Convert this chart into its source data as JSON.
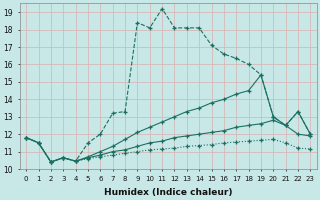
{
  "xlabel": "Humidex (Indice chaleur)",
  "xlim": [
    -0.5,
    23.5
  ],
  "ylim": [
    10,
    19.5
  ],
  "yticks": [
    10,
    11,
    12,
    13,
    14,
    15,
    16,
    17,
    18,
    19
  ],
  "xticks": [
    0,
    1,
    2,
    3,
    4,
    5,
    6,
    7,
    8,
    9,
    10,
    11,
    12,
    13,
    14,
    15,
    16,
    17,
    18,
    19,
    20,
    21,
    22,
    23
  ],
  "bg_color": "#c8e8e8",
  "line_color": "#1a7060",
  "grid_color": "#b0d0d0",
  "series": [
    {
      "x": [
        0,
        1,
        2,
        3,
        4,
        5,
        6,
        7,
        8,
        9,
        10,
        11,
        12,
        13,
        14,
        15,
        16,
        17,
        18,
        19,
        20,
        21,
        22,
        23
      ],
      "y": [
        11.8,
        11.5,
        10.4,
        10.65,
        10.45,
        11.5,
        12.0,
        13.2,
        13.3,
        18.4,
        18.1,
        19.2,
        18.1,
        18.1,
        18.1,
        17.1,
        16.6,
        16.35,
        16.0,
        15.4,
        13.0,
        12.5,
        13.3,
        12.0
      ],
      "linestyle": "--",
      "marker": "+"
    },
    {
      "x": [
        0,
        1,
        2,
        3,
        4,
        5,
        6,
        7,
        8,
        9,
        10,
        11,
        12,
        13,
        14,
        15,
        16,
        17,
        18,
        19,
        20,
        21,
        22,
        23
      ],
      "y": [
        11.8,
        11.5,
        10.4,
        10.65,
        10.45,
        10.7,
        11.0,
        11.3,
        11.7,
        12.1,
        12.4,
        12.7,
        13.0,
        13.3,
        13.5,
        13.8,
        14.0,
        14.3,
        14.5,
        15.4,
        13.0,
        12.5,
        13.3,
        12.0
      ],
      "linestyle": "-",
      "marker": "+"
    },
    {
      "x": [
        0,
        1,
        2,
        3,
        4,
        5,
        6,
        7,
        8,
        9,
        10,
        11,
        12,
        13,
        14,
        15,
        16,
        17,
        18,
        19,
        20,
        21,
        22,
        23
      ],
      "y": [
        11.8,
        11.5,
        10.4,
        10.65,
        10.45,
        10.65,
        10.8,
        11.0,
        11.1,
        11.3,
        11.5,
        11.6,
        11.8,
        11.9,
        12.0,
        12.1,
        12.2,
        12.4,
        12.5,
        12.6,
        12.8,
        12.5,
        12.0,
        11.9
      ],
      "linestyle": "-",
      "marker": "+"
    },
    {
      "x": [
        0,
        1,
        2,
        3,
        4,
        5,
        6,
        7,
        8,
        9,
        10,
        11,
        12,
        13,
        14,
        15,
        16,
        17,
        18,
        19,
        20,
        21,
        22,
        23
      ],
      "y": [
        11.8,
        11.5,
        10.4,
        10.65,
        10.45,
        10.6,
        10.7,
        10.8,
        10.9,
        11.0,
        11.1,
        11.15,
        11.2,
        11.3,
        11.35,
        11.4,
        11.5,
        11.55,
        11.6,
        11.65,
        11.7,
        11.5,
        11.2,
        11.15
      ],
      "linestyle": ":",
      "marker": "+"
    }
  ]
}
